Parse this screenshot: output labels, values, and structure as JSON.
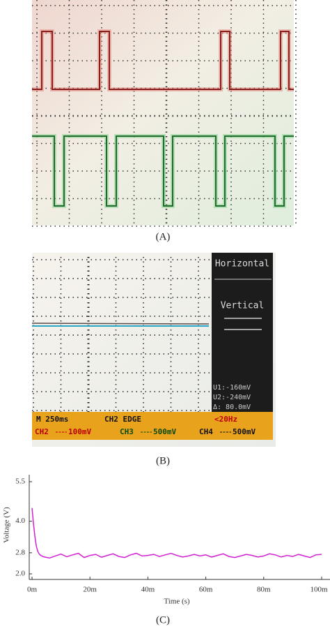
{
  "panel_a": {
    "caption": "(A)"
  },
  "panel_b": {
    "caption": "(B)",
    "menu": [
      "Horizontal",
      "Vertical"
    ],
    "cursors": [
      "U1:-160mV",
      "U2:-240mV",
      "Δ: 80.0mV"
    ],
    "status_top": [
      "M 250ms",
      "CH2 EDGE",
      "<20Hz"
    ],
    "status_bottom": [
      {
        "channel": "CH2",
        "scale": "100mV"
      },
      {
        "channel": "CH3",
        "scale": "500mV"
      },
      {
        "channel": "CH4",
        "scale": "500mV"
      }
    ]
  },
  "chart_data": {
    "type": "line",
    "caption": "(C)",
    "xlabel": "Time (s)",
    "ylabel": "Voltage (V)",
    "color": "#d21fd2",
    "x": [
      0,
      0.5,
      1,
      1.5,
      2,
      2.5,
      3,
      4,
      6,
      8,
      10,
      12,
      14,
      16,
      18,
      20,
      22,
      24,
      26,
      28,
      30,
      32,
      34,
      36,
      38,
      40,
      42,
      44,
      46,
      48,
      50,
      52,
      54,
      56,
      58,
      60,
      62,
      64,
      66,
      68,
      70,
      72,
      74,
      76,
      78,
      80,
      82,
      84,
      86,
      88,
      90,
      92,
      94,
      96,
      98,
      100
    ],
    "values": [
      4.5,
      3.9,
      3.4,
      3.05,
      2.85,
      2.75,
      2.7,
      2.65,
      2.6,
      2.68,
      2.75,
      2.65,
      2.72,
      2.78,
      2.62,
      2.7,
      2.74,
      2.63,
      2.7,
      2.76,
      2.66,
      2.62,
      2.72,
      2.78,
      2.68,
      2.7,
      2.74,
      2.66,
      2.72,
      2.78,
      2.7,
      2.64,
      2.68,
      2.74,
      2.68,
      2.72,
      2.64,
      2.7,
      2.76,
      2.66,
      2.62,
      2.68,
      2.74,
      2.7,
      2.64,
      2.68,
      2.76,
      2.72,
      2.64,
      2.7,
      2.66,
      2.74,
      2.68,
      2.62,
      2.72,
      2.74
    ],
    "xlim": [
      0,
      100
    ],
    "xticks": [
      {
        "value": 0,
        "label": "0m"
      },
      {
        "value": 20,
        "label": "20m"
      },
      {
        "value": 40,
        "label": "40m"
      },
      {
        "value": 60,
        "label": "60m"
      },
      {
        "value": 80,
        "label": "80m"
      },
      {
        "value": 100,
        "label": "100m"
      }
    ],
    "ylim": [
      2.0,
      5.5
    ],
    "yticks": [
      {
        "value": 2,
        "label": "2.0"
      },
      2.8,
      {
        "value": 4,
        "label": "4.0"
      },
      5.5
    ]
  }
}
